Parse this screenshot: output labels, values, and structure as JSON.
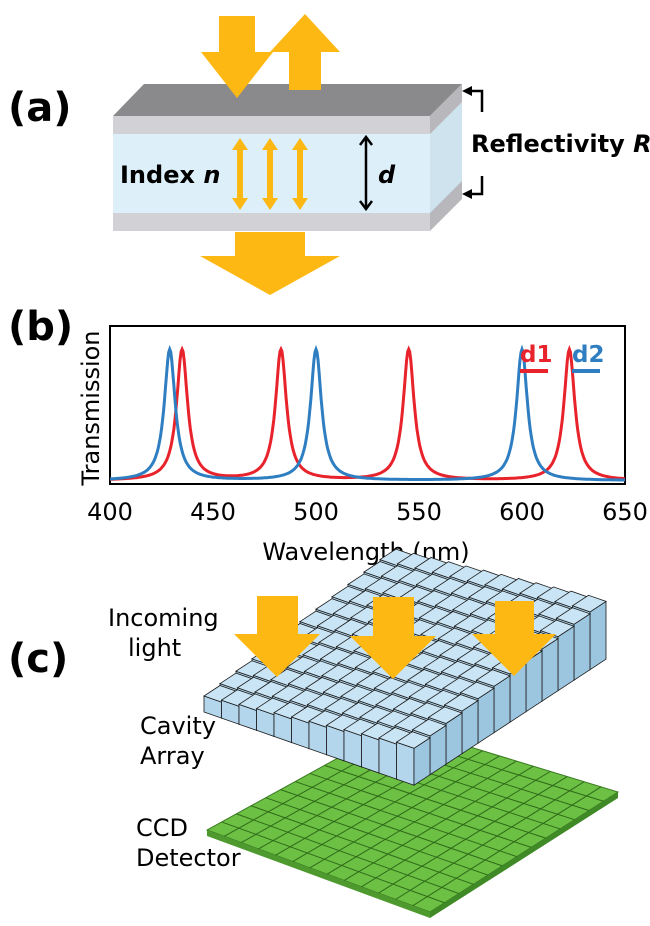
{
  "panel_a": {
    "label": "(a)",
    "index_label_prefix": "Index ",
    "index_label_var": "n",
    "reflectivity_label_prefix": "Reflectivity ",
    "reflectivity_label_var": "R",
    "thickness_label": "d"
  },
  "panel_b": {
    "label": "(b)"
  },
  "panel_c": {
    "label": "(c)",
    "incoming_line1": "Incoming",
    "incoming_line2": "light",
    "cavity_line1": "Cavity",
    "cavity_line2": "Array",
    "ccd_line1": "CCD",
    "ccd_line2": "Detector"
  },
  "colors": {
    "arrow": "#FDB813",
    "d1": "#E8232B",
    "d2": "#2E7EC1",
    "cavity_fill": "#DDEFF8",
    "mirror_fill": "#D2D2D6",
    "mirror_top": "#8A8A8C",
    "cube_fill": "#C5E1F2",
    "ccd_fill": "#6CC043"
  },
  "chart_data": {
    "type": "line",
    "xlabel": "Wavelength (nm)",
    "ylabel": "Transmission",
    "xlim": [
      400,
      650
    ],
    "ylim": [
      0,
      1
    ],
    "x_ticks": [
      400,
      450,
      500,
      550,
      600,
      650
    ],
    "y_ticks": [],
    "grid": false,
    "legend_position": "top-right",
    "series": [
      {
        "name": "d1",
        "color": "#E8232B",
        "peaks_nm": [
          435,
          483,
          545,
          623
        ],
        "peak_height": 1.0
      },
      {
        "name": "d2",
        "color": "#2E7EC1",
        "peaks_nm": [
          429,
          500,
          600
        ],
        "peak_height": 1.0
      }
    ]
  }
}
